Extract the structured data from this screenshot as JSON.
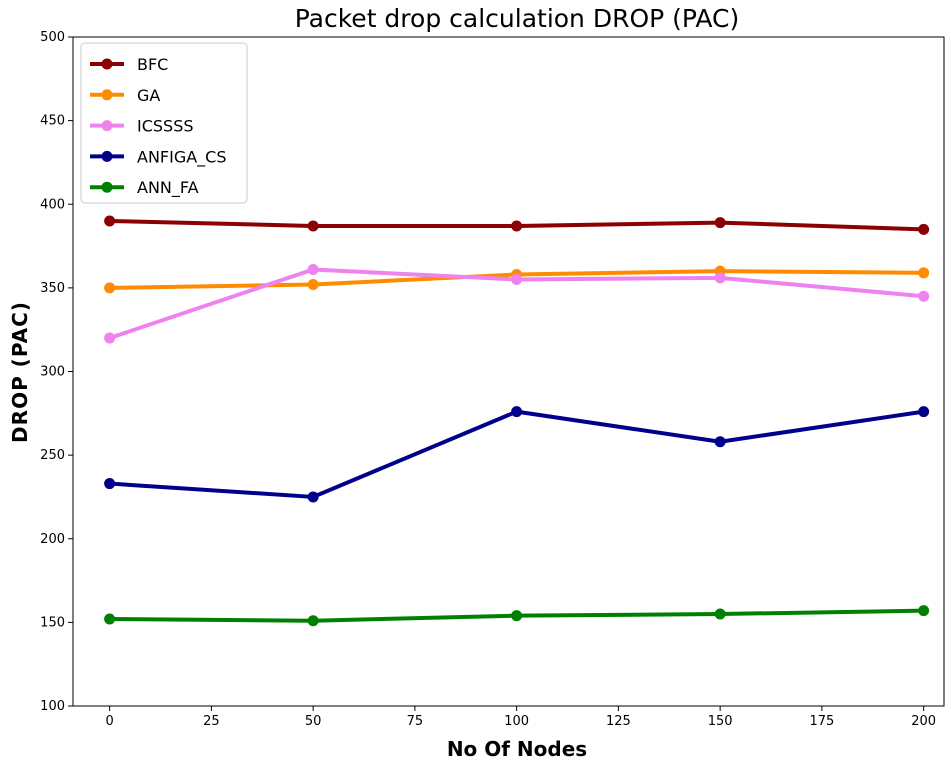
{
  "chart_data": {
    "type": "line",
    "title": "Packet drop calculation DROP (PAC)",
    "xlabel": "No Of Nodes",
    "ylabel": "DROP (PAC)",
    "x": [
      0,
      50,
      100,
      150,
      200
    ],
    "xlim": [
      -9,
      205
    ],
    "ylim": [
      100,
      500
    ],
    "xticks": [
      "0",
      "25",
      "50",
      "75",
      "100",
      "125",
      "150",
      "175",
      "200"
    ],
    "yticks": [
      "100",
      "150",
      "200",
      "250",
      "300",
      "350",
      "400",
      "450",
      "500"
    ],
    "grid": false,
    "legend_position": "top-left",
    "series": [
      {
        "name": "BFC",
        "color": "#8b0000",
        "values": [
          390,
          387,
          387,
          389,
          385
        ]
      },
      {
        "name": "GA",
        "color": "#ff8c00",
        "values": [
          350,
          352,
          358,
          360,
          359
        ]
      },
      {
        "name": "ICSSSS",
        "color": "#ee82ee",
        "values": [
          320,
          361,
          355,
          356,
          345
        ]
      },
      {
        "name": "ANFIGA_CS",
        "color": "#00008b",
        "values": [
          233,
          225,
          276,
          258,
          276
        ]
      },
      {
        "name": "ANN_FA",
        "color": "#008000",
        "values": [
          152,
          151,
          154,
          155,
          157
        ]
      }
    ]
  }
}
